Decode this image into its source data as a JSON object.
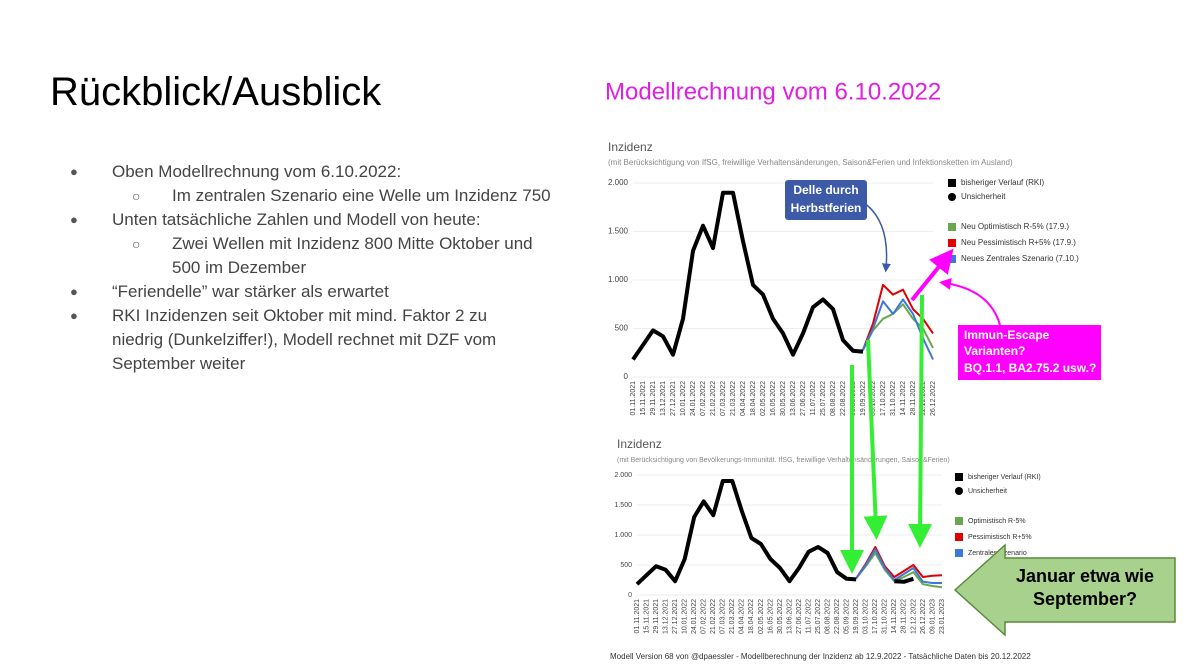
{
  "slide": {
    "title": "Rückblick/Ausblick",
    "bullets": [
      {
        "text": "Oben Modellrechnung vom 6.10.2022:",
        "sub": [
          "Im zentralen Szenario eine Welle um Inzidenz 750"
        ]
      },
      {
        "text": "Unten tatsächliche Zahlen und Modell von heute:",
        "sub": [
          "Zwei Wellen mit Inzidenz 800 Mitte Oktober und 500 im Dezember"
        ]
      },
      {
        "text": "“Feriendelle” war stärker als erwartet",
        "sub": []
      },
      {
        "text": "RKI Inzidenzen seit Oktober mit mind. Faktor 2 zu niedrig (Dunkelziffer!), Modell rechnet mit DZF vom September weiter",
        "sub": []
      }
    ],
    "image_title": "Modellrechnung vom 6.10.2022"
  },
  "annotations": {
    "delle": [
      "Delle durch",
      "Herbstferien"
    ],
    "immun": [
      "Immun-Escape",
      "Varianten?",
      "BQ.1.1, BA2.75.2 usw.?"
    ],
    "januar": [
      "Januar etwa wie",
      "September?"
    ]
  },
  "footer": "Modell Version 68 von @dpaessler - Modellberechnung der Inzidenz ab 12.9.2022 - Tatsächliche Daten bis 20.12.2022",
  "chart_data": [
    {
      "type": "line",
      "title": "Inzidenz",
      "subtitle": "(mit Berücksichtigung von IfSG, freiwillige Verhaltensänderungen, Saison&Ferien und Infektionsketten im Ausland)",
      "categories": [
        "01.11.2021",
        "15.11.2021",
        "29.11.2021",
        "13.12.2021",
        "27.12.2021",
        "10.01.2022",
        "24.01.2022",
        "07.02.2022",
        "21.02.2022",
        "07.03.2022",
        "21.03.2022",
        "04.04.2022",
        "18.04.2022",
        "02.05.2022",
        "16.05.2022",
        "30.05.2022",
        "13.06.2022",
        "27.06.2022",
        "11.07.2022",
        "25.07.2022",
        "08.08.2022",
        "22.08.2022",
        "05.09.2022",
        "19.09.2022",
        "03.10.2022",
        "17.10.2022",
        "31.10.2022",
        "14.11.2022",
        "28.11.2022",
        "12.12.2022",
        "26.12.2022"
      ],
      "series": [
        {
          "name": "bisheriger Verlauf (RKI)",
          "color": "#000000",
          "values": [
            180,
            330,
            480,
            420,
            230,
            600,
            1300,
            1560,
            1330,
            1900,
            1900,
            1400,
            950,
            850,
            600,
            450,
            230,
            450,
            720,
            800,
            700,
            380,
            270,
            260,
            null,
            null,
            null,
            null,
            null,
            null,
            null
          ]
        },
        {
          "name": "Neu Optimistisch R-5% (17.9.)",
          "color": "#6aa84f",
          "values": [
            null,
            null,
            null,
            null,
            null,
            null,
            null,
            null,
            null,
            null,
            null,
            null,
            null,
            null,
            null,
            null,
            null,
            null,
            null,
            null,
            null,
            null,
            null,
            280,
            480,
            600,
            650,
            750,
            600,
            500,
            300
          ]
        },
        {
          "name": "Neu Pessimistisch R+5% (17.9.)",
          "color": "#e00000",
          "values": [
            null,
            null,
            null,
            null,
            null,
            null,
            null,
            null,
            null,
            null,
            null,
            null,
            null,
            null,
            null,
            null,
            null,
            null,
            null,
            null,
            null,
            null,
            null,
            280,
            550,
            950,
            850,
            900,
            700,
            600,
            450
          ]
        },
        {
          "name": "Neues Zentrales Szenario (7.10.)",
          "color": "#3c78d8",
          "values": [
            null,
            null,
            null,
            null,
            null,
            null,
            null,
            null,
            null,
            null,
            null,
            null,
            null,
            null,
            null,
            null,
            null,
            null,
            null,
            null,
            700,
            380,
            260,
            280,
            500,
            780,
            650,
            800,
            650,
            400,
            180
          ]
        }
      ],
      "uncertainty_label": "Unsicherheit",
      "ylim": [
        0,
        2000
      ],
      "yticks": [
        0,
        500,
        {
          "value": 1000,
          "label": "1.000"
        },
        {
          "value": 1500,
          "label": "1.500"
        },
        {
          "value": 2000,
          "label": "2.000"
        }
      ],
      "grid": true
    },
    {
      "type": "line",
      "title": "Inzidenz",
      "subtitle": "(mit Berücksichtigung von Bevölkerungs-Immunität. IfSG, freiwillige Verhaltensänderungen, Saison&Ferien)",
      "categories": [
        "01.11.2021",
        "15.11.2021",
        "29.11.2021",
        "13.12.2021",
        "27.12.2021",
        "10.01.2022",
        "24.01.2022",
        "07.02.2022",
        "21.02.2022",
        "07.03.2022",
        "21.03.2022",
        "04.04.2022",
        "18.04.2022",
        "02.05.2022",
        "16.05.2022",
        "30.05.2022",
        "13.06.2022",
        "27.06.2022",
        "11.07.2022",
        "25.07.2022",
        "08.08.2022",
        "22.08.2022",
        "05.09.2022",
        "19.09.2022",
        "03.10.2022",
        "17.10.2022",
        "31.10.2022",
        "14.11.2022",
        "28.11.2022",
        "12.12.2022",
        "26.12.2022",
        "09.01.2023",
        "23.01.2023"
      ],
      "series": [
        {
          "name": "bisheriger Verlauf (RKI)",
          "color": "#000000",
          "values": [
            180,
            330,
            480,
            420,
            230,
            600,
            1300,
            1560,
            1330,
            1900,
            1900,
            1400,
            950,
            850,
            600,
            450,
            230,
            450,
            720,
            800,
            700,
            380,
            270,
            260,
            null,
            null,
            null,
            230,
            220,
            270,
            null,
            null,
            null
          ]
        },
        {
          "name": "Optimistisch R-5%",
          "color": "#6aa84f",
          "values": [
            null,
            null,
            null,
            null,
            null,
            null,
            null,
            null,
            null,
            null,
            null,
            null,
            null,
            null,
            null,
            null,
            null,
            null,
            null,
            null,
            null,
            null,
            null,
            280,
            480,
            700,
            420,
            230,
            300,
            380,
            180,
            150,
            130
          ]
        },
        {
          "name": "Pessimistisch R+5%",
          "color": "#e00000",
          "values": [
            null,
            null,
            null,
            null,
            null,
            null,
            null,
            null,
            null,
            null,
            null,
            null,
            null,
            null,
            null,
            null,
            null,
            null,
            null,
            null,
            null,
            null,
            null,
            280,
            520,
            800,
            480,
            300,
            400,
            500,
            300,
            320,
            330
          ]
        },
        {
          "name": "Zentrales Szenario",
          "color": "#3c78d8",
          "values": [
            null,
            null,
            null,
            null,
            null,
            null,
            null,
            null,
            null,
            null,
            null,
            null,
            null,
            null,
            null,
            null,
            null,
            null,
            null,
            null,
            700,
            380,
            260,
            280,
            500,
            760,
            450,
            250,
            350,
            450,
            220,
            200,
            200
          ]
        }
      ],
      "uncertainty_label": "Unsicherheit",
      "ylim": [
        0,
        2000
      ],
      "yticks": [
        0,
        500,
        {
          "value": 1000,
          "label": "1.000"
        },
        {
          "value": 1500,
          "label": "1.500"
        },
        {
          "value": 2000,
          "label": "2.000"
        }
      ],
      "grid": true
    }
  ]
}
